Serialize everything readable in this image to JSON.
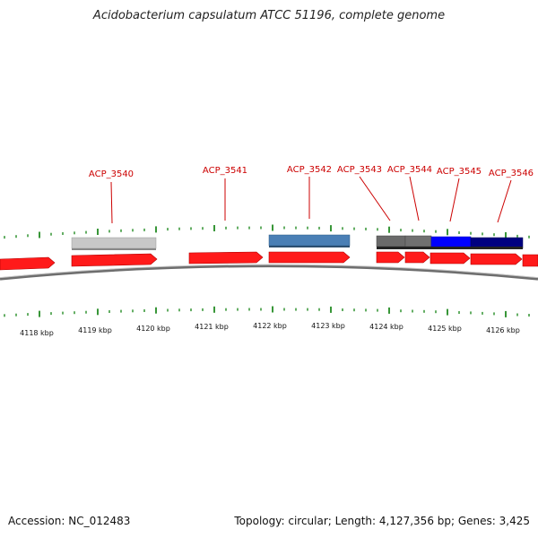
{
  "title": "Acidobacterium capsulatum ATCC 51196, complete genome",
  "footer": {
    "accession": "Accession: NC_012483",
    "summary": "Topology: circular; Length: 4,127,356 bp; Genes: 3,425"
  },
  "colors": {
    "cds": "#ff0000",
    "backbone": "#808080",
    "tick": "#228b22",
    "label": "#cc0000"
  },
  "axis_labels": [
    "4118 kbp",
    "4119 kbp",
    "4120 kbp",
    "4121 kbp",
    "4122 kbp",
    "4123 kbp",
    "4124 kbp",
    "4125 kbp",
    "4126 kbp"
  ],
  "genes": [
    {
      "label": "ACP_3540",
      "color": "#c8c8c8"
    },
    {
      "label": "ACP_3541",
      "color": null
    },
    {
      "label": "ACP_3542",
      "color": "#4a7fb5"
    },
    {
      "label": "ACP_3543",
      "color": "#6a6a6a"
    },
    {
      "label": "ACP_3544",
      "color": "#707070"
    },
    {
      "label": "ACP_3545",
      "color": "#0000ff"
    },
    {
      "label": "ACP_3546",
      "color": "#000080"
    }
  ]
}
